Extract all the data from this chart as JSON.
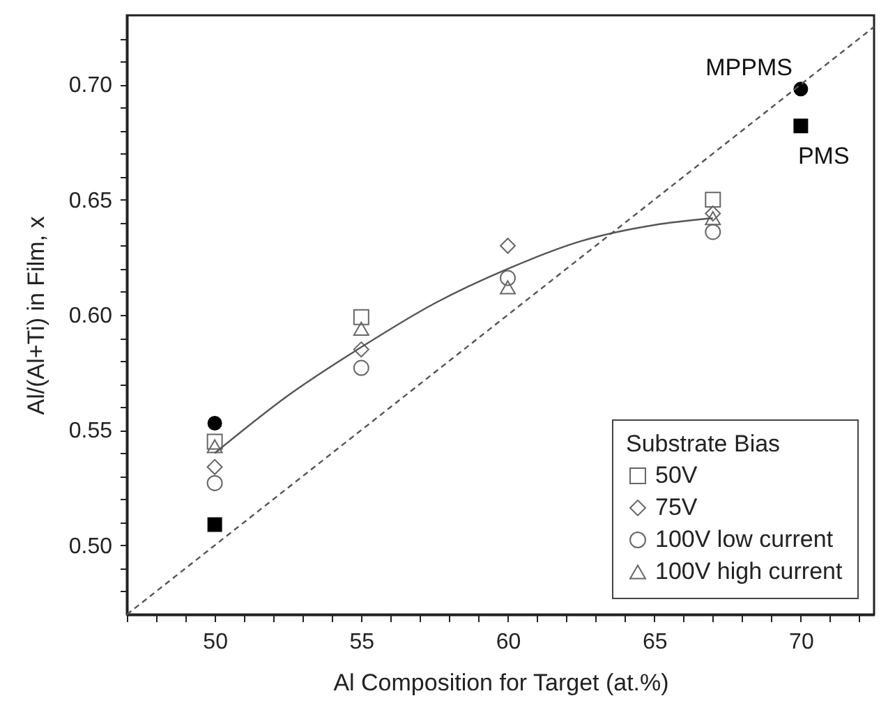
{
  "chart_data": {
    "type": "scatter",
    "xlabel": "Al Composition for Target (at.%)",
    "ylabel": "Al/(Al+Ti) in Film, x",
    "legend_title": "Substrate Bias",
    "legend": "bottom right",
    "grid": false,
    "xlim": [
      47,
      72.5
    ],
    "ylim": [
      0.47,
      0.73
    ],
    "xticks": [
      {
        "value": 47,
        "label": null
      },
      {
        "value": 48,
        "label": null
      },
      {
        "value": 49,
        "label": null
      },
      50,
      {
        "value": 51,
        "label": null
      },
      {
        "value": 52,
        "label": null
      },
      {
        "value": 53,
        "label": null
      },
      {
        "value": 54,
        "label": null
      },
      55,
      {
        "value": 56,
        "label": null
      },
      {
        "value": 57,
        "label": null
      },
      {
        "value": 58,
        "label": null
      },
      {
        "value": 59,
        "label": null
      },
      60,
      {
        "value": 61,
        "label": null
      },
      {
        "value": 62,
        "label": null
      },
      {
        "value": 63,
        "label": null
      },
      {
        "value": 64,
        "label": null
      },
      65,
      {
        "value": 66,
        "label": null
      },
      {
        "value": 67,
        "label": null
      },
      {
        "value": 68,
        "label": null
      },
      {
        "value": 69,
        "label": null
      },
      70,
      {
        "value": 71,
        "label": null
      },
      {
        "value": 72,
        "label": null
      }
    ],
    "yticks": [
      {
        "value": 0.48,
        "label": null
      },
      {
        "value": 0.49,
        "label": null
      },
      {
        "value": 0.5,
        "label": "0.50"
      },
      {
        "value": 0.51,
        "label": null
      },
      {
        "value": 0.52,
        "label": null
      },
      {
        "value": 0.53,
        "label": null
      },
      {
        "value": 0.54,
        "label": null
      },
      0.55,
      {
        "value": 0.56,
        "label": null
      },
      {
        "value": 0.57,
        "label": null
      },
      {
        "value": 0.58,
        "label": null
      },
      {
        "value": 0.59,
        "label": null
      },
      {
        "value": 0.6,
        "label": "0.60"
      },
      {
        "value": 0.61,
        "label": null
      },
      {
        "value": 0.62,
        "label": null
      },
      {
        "value": 0.63,
        "label": null
      },
      {
        "value": 0.64,
        "label": null
      },
      0.65,
      {
        "value": 0.66,
        "label": null
      },
      {
        "value": 0.67,
        "label": null
      },
      {
        "value": 0.68,
        "label": null
      },
      {
        "value": 0.69,
        "label": null
      },
      {
        "value": 0.7,
        "label": "0.70"
      },
      {
        "value": 0.71,
        "label": null
      },
      {
        "value": 0.72,
        "label": null
      }
    ],
    "series": [
      {
        "name": "50V",
        "marker": "square",
        "color": "#666666",
        "x": [
          50,
          55,
          60,
          67
        ],
        "values": [
          0.545,
          0.599,
          null,
          0.65
        ]
      },
      {
        "name": "75V",
        "marker": "diamond",
        "color": "#666666",
        "x": [
          50,
          55,
          60,
          67
        ],
        "values": [
          0.534,
          0.585,
          0.63,
          0.644
        ]
      },
      {
        "name": "100V low current",
        "marker": "circle",
        "color": "#666666",
        "x": [
          50,
          55,
          60,
          67
        ],
        "values": [
          0.527,
          0.577,
          0.616,
          0.636
        ]
      },
      {
        "name": "100V high current",
        "marker": "triangle",
        "color": "#666666",
        "x": [
          50,
          55,
          60,
          67
        ],
        "values": [
          0.543,
          0.594,
          0.612,
          0.642
        ]
      },
      {
        "marker": "circle",
        "color": "#000000",
        "x": [
          50,
          70
        ],
        "values": [
          0.553,
          0.698
        ]
      },
      {
        "marker": "square",
        "color": "#000000",
        "x": [
          50,
          70
        ],
        "values": [
          0.509,
          0.682
        ]
      },
      {
        "type": "line",
        "color": "#555555",
        "line_style": "solid",
        "x": [
          50,
          52.5,
          55,
          57.5,
          60,
          62.5,
          65,
          67
        ],
        "values": [
          0.54,
          0.565,
          0.586,
          0.605,
          0.62,
          0.632,
          0.639,
          0.642
        ]
      },
      {
        "type": "line",
        "color": "#555555",
        "line_style": "dashed",
        "x": [
          47,
          72.5
        ],
        "values": [
          0.47,
          0.725
        ]
      }
    ],
    "annotations": [
      {
        "text": "MPPMS",
        "x": 70,
        "y": 0.698
      },
      {
        "text": "PMS",
        "x": 70,
        "y": 0.682
      }
    ]
  }
}
